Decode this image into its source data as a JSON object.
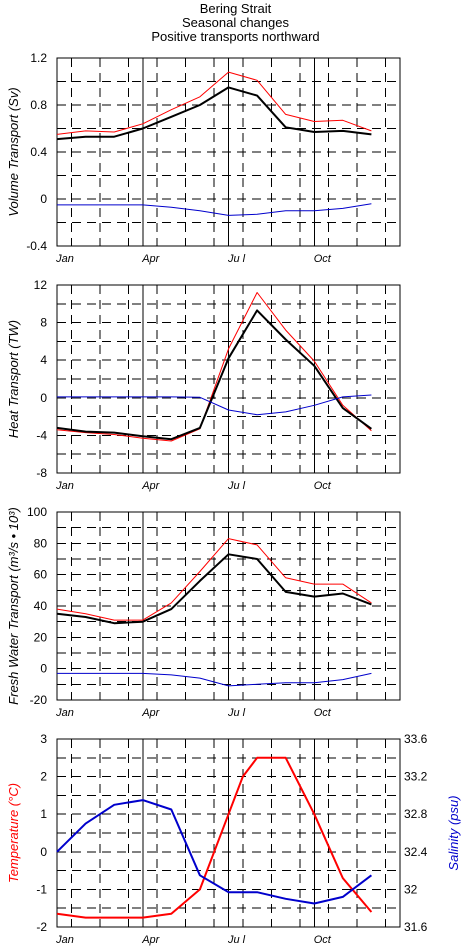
{
  "title": [
    "Bering Strait",
    "Seasonal changes",
    "Positive transports northward"
  ],
  "colors": {
    "black": "#000000",
    "red": "#ff0000",
    "blue": "#0000cc",
    "grid": "#000000"
  },
  "month_labels": [
    "Jan",
    "Apr",
    "Ju l",
    "Oct"
  ],
  "chart_data": [
    {
      "type": "line",
      "ylabel": "Volume Transport (Sv)",
      "ylim": [
        -0.4,
        1.2
      ],
      "yticks": [
        -0.4,
        0,
        0.4,
        0.8,
        1.2
      ],
      "yticklabels": [
        "-0.4",
        "0",
        "0.4",
        "0.8",
        "1.2"
      ],
      "x": [
        1,
        2,
        3,
        4,
        5,
        6,
        7,
        8,
        9,
        10,
        11,
        12
      ],
      "series": [
        {
          "color": "#ff0000",
          "width": 1,
          "values": [
            0.55,
            0.58,
            0.57,
            0.64,
            0.76,
            0.87,
            1.08,
            1.01,
            0.72,
            0.66,
            0.67,
            0.58
          ]
        },
        {
          "color": "#000000",
          "width": 2,
          "values": [
            0.51,
            0.53,
            0.53,
            0.6,
            0.7,
            0.8,
            0.95,
            0.88,
            0.61,
            0.57,
            0.58,
            0.55
          ]
        },
        {
          "color": "#0000cc",
          "width": 1,
          "values": [
            -0.05,
            -0.05,
            -0.05,
            -0.05,
            -0.07,
            -0.1,
            -0.14,
            -0.13,
            -0.1,
            -0.1,
            -0.08,
            -0.04
          ]
        }
      ]
    },
    {
      "type": "line",
      "ylabel": "Heat Transport (TW)",
      "ylim": [
        -8,
        12
      ],
      "yticks": [
        -8,
        -4,
        0,
        4,
        8,
        12
      ],
      "yticklabels": [
        "-8",
        "-4",
        "0",
        "4",
        "8",
        "12"
      ],
      "x": [
        1,
        2,
        3,
        4,
        5,
        6,
        7,
        8,
        9,
        10,
        11,
        12
      ],
      "series": [
        {
          "color": "#ff0000",
          "width": 1,
          "values": [
            -3.4,
            -3.7,
            -3.9,
            -4.3,
            -4.6,
            -3.3,
            5.2,
            11.2,
            7.2,
            3.9,
            -0.8,
            -3.5
          ]
        },
        {
          "color": "#000000",
          "width": 2,
          "values": [
            -3.2,
            -3.6,
            -3.7,
            -4.1,
            -4.4,
            -3.2,
            4.2,
            9.3,
            6.2,
            3.4,
            -1.1,
            -3.3
          ]
        },
        {
          "color": "#0000cc",
          "width": 1,
          "values": [
            0.1,
            0.1,
            0.1,
            0.1,
            0.1,
            0.05,
            -1.3,
            -1.8,
            -1.5,
            -0.8,
            0.1,
            0.3
          ]
        }
      ]
    },
    {
      "type": "line",
      "ylabel": "Fresh Water Transport (m³/s • 10³)",
      "ylim": [
        -20,
        100
      ],
      "yticks": [
        -20,
        0,
        20,
        40,
        60,
        80,
        100
      ],
      "yticklabels": [
        "-20",
        "0",
        "20",
        "40",
        "60",
        "80",
        "100"
      ],
      "x": [
        1,
        2,
        3,
        4,
        5,
        6,
        7,
        8,
        9,
        10,
        11,
        12
      ],
      "series": [
        {
          "color": "#ff0000",
          "width": 1,
          "values": [
            38,
            35,
            31,
            31,
            42,
            62,
            83,
            79,
            58,
            54,
            54,
            42
          ]
        },
        {
          "color": "#000000",
          "width": 2,
          "values": [
            35,
            33,
            29,
            30,
            38,
            56,
            73,
            70,
            49,
            46,
            48,
            41
          ]
        },
        {
          "color": "#0000cc",
          "width": 1,
          "values": [
            -3,
            -3,
            -3,
            -3,
            -4,
            -6,
            -11,
            -10,
            -9,
            -9,
            -7,
            -3
          ]
        }
      ]
    },
    {
      "type": "line",
      "ylabel": "Temperature (°C)",
      "ylabel_right": "Salinity (psu)",
      "ylim": [
        -2,
        3
      ],
      "yticks": [
        -2,
        -1,
        0,
        1,
        2,
        3
      ],
      "yticklabels": [
        "-2",
        "-1",
        "0",
        "1",
        "2",
        "3"
      ],
      "ylim_right": [
        31.6,
        33.6
      ],
      "yticks_right": [
        31.6,
        32,
        32.4,
        32.8,
        33.2,
        33.6
      ],
      "yticklabels_right": [
        "31.6",
        "32",
        "32.4",
        "32.8",
        "33.2",
        "33.6"
      ],
      "x": [
        1,
        2,
        3,
        4,
        5,
        6,
        7,
        8,
        9,
        10,
        11,
        12
      ],
      "series": [
        {
          "color": "#ff0000",
          "width": 2,
          "axis": "left",
          "x": [
            1,
            2,
            3,
            4,
            5,
            6,
            7,
            7.5,
            8,
            9,
            10,
            11,
            12
          ],
          "values": [
            -1.65,
            -1.75,
            -1.75,
            -1.75,
            -1.65,
            -1.0,
            1.0,
            2.0,
            2.5,
            2.5,
            1.0,
            -0.7,
            -1.6
          ]
        },
        {
          "color": "#0000cc",
          "width": 2,
          "axis": "right",
          "x": [
            1,
            2,
            3,
            4,
            5,
            6,
            7,
            8,
            9,
            10,
            11,
            12
          ],
          "values": [
            32.4,
            32.7,
            32.9,
            32.95,
            32.85,
            32.15,
            31.97,
            31.97,
            31.9,
            31.85,
            31.92,
            32.15
          ]
        }
      ]
    }
  ]
}
